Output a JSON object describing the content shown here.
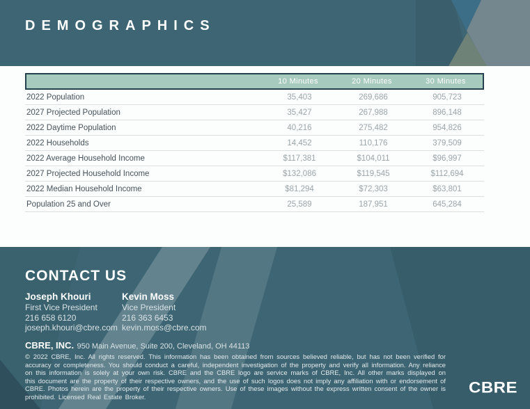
{
  "banner": {
    "title": "DEMOGRAPHICS"
  },
  "table": {
    "headers": [
      "10 Minutes",
      "20 Minutes",
      "30 Minutes"
    ],
    "rows": [
      {
        "label": "2022 Population",
        "v1": "35,403",
        "v2": "269,686",
        "v3": "905,723"
      },
      {
        "label": "2027 Projected Population",
        "v1": "35,427",
        "v2": "267,988",
        "v3": "896,148"
      },
      {
        "label": "2022 Daytime Population",
        "v1": "40,216",
        "v2": "275,482",
        "v3": "954,826"
      },
      {
        "label": "2022 Households",
        "v1": "14,452",
        "v2": "110,176",
        "v3": "379,509"
      },
      {
        "label": "2022 Average Household Income",
        "v1": "$117,381",
        "v2": "$104,011",
        "v3": "$96,997"
      },
      {
        "label": "2027 Projected Household Income",
        "v1": "$132,086",
        "v2": "$119,545",
        "v3": "$112,694"
      },
      {
        "label": "2022 Median Household Income",
        "v1": "$81,294",
        "v2": "$72,303",
        "v3": "$63,801"
      },
      {
        "label": "Population 25 and Over",
        "v1": "25,589",
        "v2": "187,951",
        "v3": "645,284"
      }
    ]
  },
  "contact": {
    "heading": "CONTACT US",
    "people": [
      {
        "name": "Joseph Khouri",
        "title": "First Vice President",
        "phone": "216 658 6120",
        "email": "joseph.khouri@cbre.com"
      },
      {
        "name": "Kevin Moss",
        "title": "Vice President",
        "phone": "216 363 6453",
        "email": "kevin.moss@cbre.com"
      }
    ],
    "company": "CBRE, INC.",
    "address": "950 Main Avenue, Suite 200, Cleveland, OH 44113",
    "legal": "© 2022 CBRE, Inc. All rights reserved. This information has been obtained from sources believed reliable, but has not been verified for accuracy or completeness. You should conduct a careful, independent investigation of the property and verify all information. Any reliance on this information is solely at your own risk. CBRE and the CBRE logo are service marks of CBRE, Inc. All other marks displayed on this document are the property of their respective owners, and the use of such logos does not imply any affiliation with or endorsement of CBRE. Photos herein are the property of their respective owners. Use of these images without the express written consent of the owner is prohibited. Licensed Real Estate Broker.",
    "logo": "CBRE"
  },
  "colors": {
    "teal_base": "#3d6573",
    "teal_dark": "#3a5e6b",
    "blue_accent": "#3d6e87",
    "gray_wedge": "#75878e",
    "sage": "#6f8278",
    "table_header_green": "#a6cabe",
    "table_header_border": "#24414e",
    "row_label_text": "#45525b",
    "row_value_text": "#9aa4a9"
  }
}
